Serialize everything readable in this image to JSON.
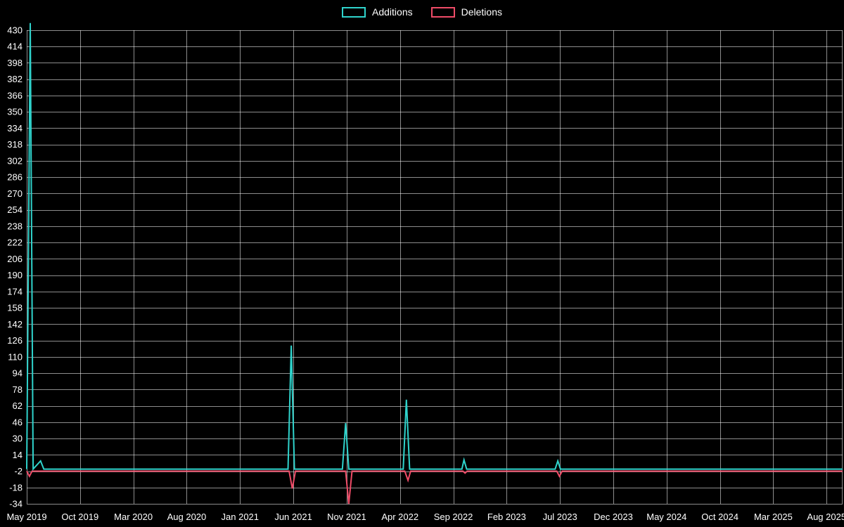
{
  "chart_data": {
    "type": "line",
    "title": "",
    "background_color": "#000000",
    "text_color": "#ffffff",
    "grid_color": "rgba(255,255,255,0.55)",
    "legend": [
      {
        "name": "Additions",
        "color": "#2fd3cc"
      },
      {
        "name": "Deletions",
        "color": "#ef4b67"
      }
    ],
    "x_tick_labels": [
      "May 2019",
      "Oct 2019",
      "Mar 2020",
      "Aug 2020",
      "Jan 2021",
      "Jun 2021",
      "Nov 2021",
      "Apr 2022",
      "Sep 2022",
      "Feb 2023",
      "Jul 2023",
      "Dec 2023",
      "May 2024",
      "Oct 2024",
      "Mar 2025",
      "Aug 2025"
    ],
    "x_tick_positions": [
      0,
      5,
      10,
      15,
      20,
      25,
      30,
      35,
      40,
      45,
      50,
      55,
      60,
      65,
      70,
      75
    ],
    "x_range": [
      0,
      76.5
    ],
    "y_ticks": [
      -34,
      -18,
      -2,
      14,
      30,
      46,
      62,
      78,
      94,
      110,
      126,
      142,
      158,
      174,
      190,
      206,
      222,
      238,
      254,
      270,
      286,
      302,
      318,
      334,
      350,
      366,
      382,
      398,
      414,
      430
    ],
    "y_range": [
      -34,
      430
    ],
    "series": [
      {
        "name": "Additions",
        "color": "#2fd3cc",
        "points": [
          [
            0,
            0
          ],
          [
            0.33,
            437
          ],
          [
            0.6,
            0
          ],
          [
            1.3,
            8
          ],
          [
            1.6,
            0
          ],
          [
            24.5,
            0
          ],
          [
            24.8,
            121
          ],
          [
            25.1,
            0
          ],
          [
            29.6,
            0
          ],
          [
            29.9,
            45
          ],
          [
            30.2,
            0
          ],
          [
            35.3,
            0
          ],
          [
            35.6,
            68
          ],
          [
            35.9,
            0
          ],
          [
            40.8,
            0
          ],
          [
            41.0,
            9
          ],
          [
            41.25,
            0
          ],
          [
            49.55,
            0
          ],
          [
            49.8,
            8
          ],
          [
            50.05,
            0
          ],
          [
            76.5,
            0
          ]
        ]
      },
      {
        "name": "Deletions",
        "color": "#ef4b67",
        "points": [
          [
            0,
            -2
          ],
          [
            0.25,
            -7
          ],
          [
            0.5,
            -2
          ],
          [
            24.6,
            -2
          ],
          [
            24.9,
            -19
          ],
          [
            25.2,
            -2
          ],
          [
            29.9,
            -2
          ],
          [
            30.2,
            -34
          ],
          [
            30.5,
            -2
          ],
          [
            35.45,
            -2
          ],
          [
            35.75,
            -11
          ],
          [
            36.0,
            -2
          ],
          [
            40.9,
            -2
          ],
          [
            41.1,
            -4
          ],
          [
            41.3,
            -2
          ],
          [
            49.7,
            -2
          ],
          [
            49.95,
            -7
          ],
          [
            50.2,
            -2
          ],
          [
            76.5,
            -2
          ]
        ]
      }
    ],
    "legend_position": "top-center",
    "grid": true
  }
}
